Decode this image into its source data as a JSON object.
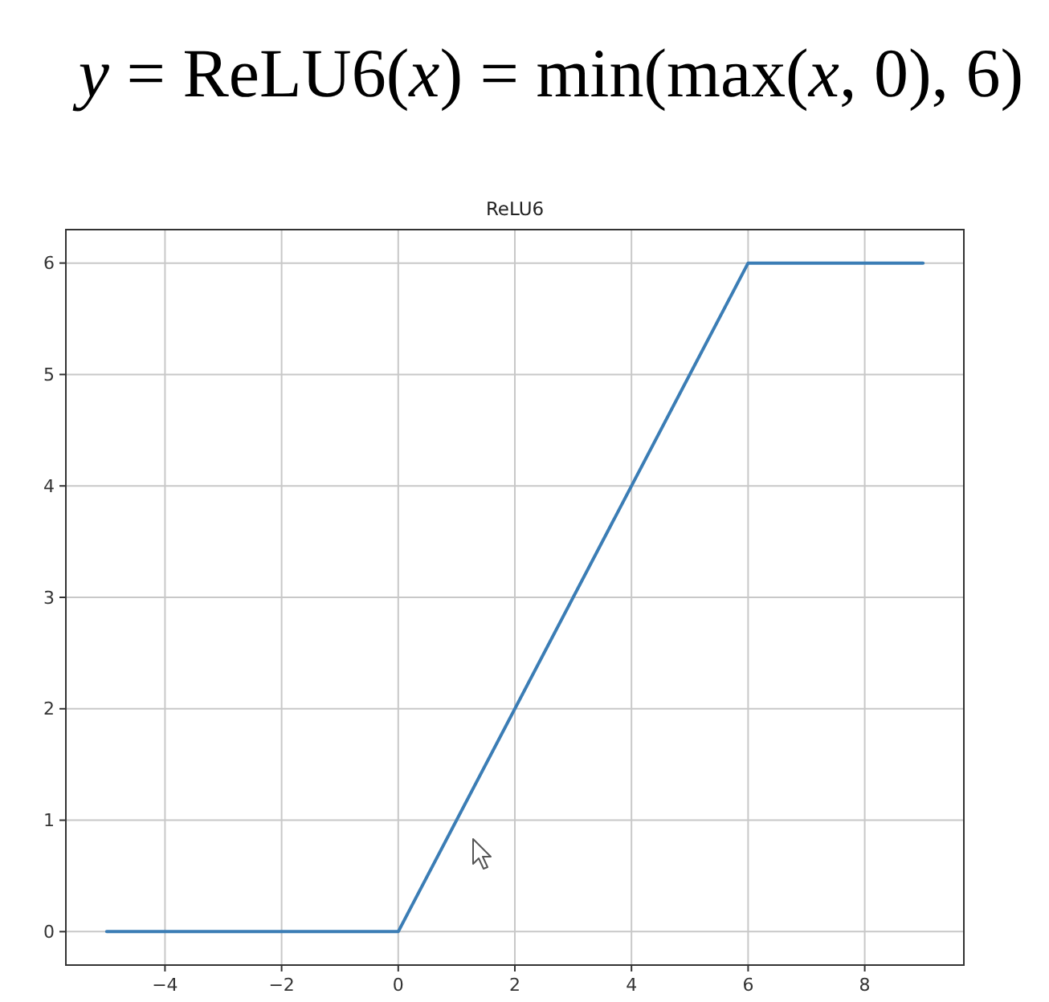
{
  "chart_data": {
    "type": "line",
    "title": "y = ReLU6(x) = min(max(x, 0), 6)",
    "subtitle": "ReLU6",
    "x": [
      -5,
      0,
      6,
      9
    ],
    "series": [
      {
        "color": "#3b7db5",
        "values": [
          0,
          0,
          6,
          6
        ]
      }
    ],
    "xlim": [
      -5.7,
      9.7
    ],
    "ylim": [
      -0.3,
      6.3
    ],
    "xticks": [
      {
        "value": -4,
        "label": "−4"
      },
      {
        "value": -2,
        "label": "−2"
      },
      0,
      2,
      4,
      6,
      8
    ],
    "yticks": [
      0,
      1,
      2,
      3,
      4,
      5,
      6
    ],
    "grid": true
  }
}
